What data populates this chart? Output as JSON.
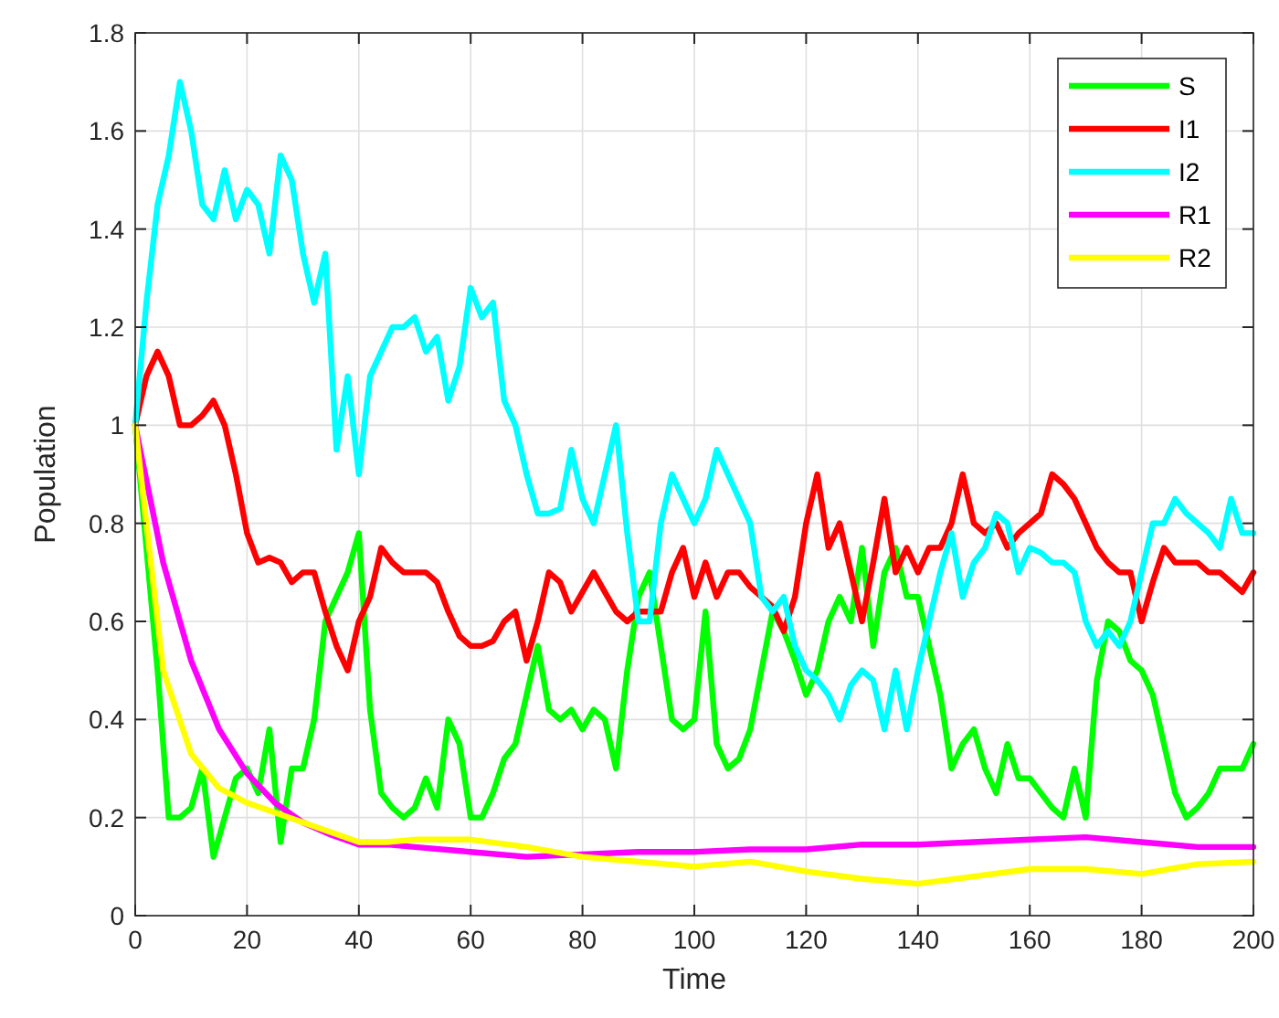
{
  "chart_data": {
    "type": "line",
    "xlabel": "Time",
    "ylabel": "Population",
    "x": [
      0,
      2,
      4,
      6,
      8,
      10,
      12,
      14,
      16,
      18,
      20,
      22,
      24,
      26,
      28,
      30,
      32,
      34,
      36,
      38,
      40,
      42,
      44,
      46,
      48,
      50,
      52,
      54,
      56,
      58,
      60,
      62,
      64,
      66,
      68,
      70,
      72,
      74,
      76,
      78,
      80,
      82,
      84,
      86,
      88,
      90,
      92,
      94,
      96,
      98,
      100,
      102,
      104,
      106,
      108,
      110,
      112,
      114,
      116,
      118,
      120,
      122,
      124,
      126,
      128,
      130,
      132,
      134,
      136,
      138,
      140,
      142,
      144,
      146,
      148,
      150,
      152,
      154,
      156,
      158,
      160,
      162,
      164,
      166,
      168,
      170,
      172,
      174,
      176,
      178,
      180,
      182,
      184,
      186,
      188,
      190,
      192,
      194,
      196,
      198,
      200
    ],
    "series": [
      {
        "name": "S",
        "color": "#00ff00",
        "values": [
          1.0,
          0.75,
          0.5,
          0.2,
          0.2,
          0.22,
          0.3,
          0.12,
          0.2,
          0.28,
          0.3,
          0.25,
          0.38,
          0.15,
          0.3,
          0.3,
          0.4,
          0.6,
          0.65,
          0.7,
          0.78,
          0.42,
          0.25,
          0.22,
          0.2,
          0.22,
          0.28,
          0.22,
          0.4,
          0.35,
          0.2,
          0.2,
          0.25,
          0.32,
          0.35,
          0.45,
          0.55,
          0.42,
          0.4,
          0.42,
          0.38,
          0.42,
          0.4,
          0.3,
          0.5,
          0.65,
          0.7,
          0.55,
          0.4,
          0.38,
          0.4,
          0.62,
          0.35,
          0.3,
          0.32,
          0.38,
          0.5,
          0.62,
          0.58,
          0.52,
          0.45,
          0.5,
          0.6,
          0.65,
          0.6,
          0.75,
          0.55,
          0.7,
          0.75,
          0.65,
          0.65,
          0.55,
          0.45,
          0.3,
          0.35,
          0.38,
          0.3,
          0.25,
          0.35,
          0.28,
          0.28,
          0.25,
          0.22,
          0.2,
          0.3,
          0.2,
          0.48,
          0.6,
          0.58,
          0.52,
          0.5,
          0.45,
          0.35,
          0.25,
          0.2,
          0.22,
          0.25,
          0.3,
          0.3,
          0.3,
          0.35
        ]
      },
      {
        "name": "I1",
        "color": "#ff0000",
        "values": [
          1.0,
          1.1,
          1.15,
          1.1,
          1.0,
          1.0,
          1.02,
          1.05,
          1.0,
          0.9,
          0.78,
          0.72,
          0.73,
          0.72,
          0.68,
          0.7,
          0.7,
          0.62,
          0.55,
          0.5,
          0.6,
          0.65,
          0.75,
          0.72,
          0.7,
          0.7,
          0.7,
          0.68,
          0.62,
          0.57,
          0.55,
          0.55,
          0.56,
          0.6,
          0.62,
          0.52,
          0.6,
          0.7,
          0.68,
          0.62,
          0.66,
          0.7,
          0.66,
          0.62,
          0.6,
          0.62,
          0.62,
          0.62,
          0.7,
          0.75,
          0.65,
          0.72,
          0.65,
          0.7,
          0.7,
          0.67,
          0.65,
          0.63,
          0.58,
          0.65,
          0.8,
          0.9,
          0.75,
          0.8,
          0.7,
          0.6,
          0.72,
          0.85,
          0.7,
          0.75,
          0.7,
          0.75,
          0.75,
          0.8,
          0.9,
          0.8,
          0.78,
          0.8,
          0.75,
          0.78,
          0.8,
          0.82,
          0.9,
          0.88,
          0.85,
          0.8,
          0.75,
          0.72,
          0.7,
          0.7,
          0.6,
          0.68,
          0.75,
          0.72,
          0.72,
          0.72,
          0.7,
          0.7,
          0.68,
          0.66,
          0.7
        ]
      },
      {
        "name": "I2",
        "color": "#00ffff",
        "values": [
          1.0,
          1.25,
          1.45,
          1.55,
          1.7,
          1.6,
          1.45,
          1.42,
          1.52,
          1.42,
          1.48,
          1.45,
          1.35,
          1.55,
          1.5,
          1.35,
          1.25,
          1.35,
          0.95,
          1.1,
          0.9,
          1.1,
          1.15,
          1.2,
          1.2,
          1.22,
          1.15,
          1.18,
          1.05,
          1.12,
          1.28,
          1.22,
          1.25,
          1.05,
          1.0,
          0.9,
          0.82,
          0.82,
          0.83,
          0.95,
          0.85,
          0.8,
          0.9,
          1.0,
          0.78,
          0.6,
          0.6,
          0.8,
          0.9,
          0.85,
          0.8,
          0.85,
          0.95,
          0.9,
          0.85,
          0.8,
          0.65,
          0.62,
          0.65,
          0.55,
          0.5,
          0.48,
          0.45,
          0.4,
          0.47,
          0.5,
          0.48,
          0.38,
          0.5,
          0.38,
          0.5,
          0.6,
          0.7,
          0.78,
          0.65,
          0.72,
          0.75,
          0.82,
          0.8,
          0.7,
          0.75,
          0.74,
          0.72,
          0.72,
          0.7,
          0.6,
          0.55,
          0.58,
          0.55,
          0.6,
          0.7,
          0.8,
          0.8,
          0.85,
          0.82,
          0.8,
          0.78,
          0.75,
          0.85,
          0.78,
          0.78
        ]
      },
      {
        "name": "R1",
        "color": "#ff00ff",
        "x": [
          0,
          5,
          10,
          15,
          20,
          25,
          30,
          35,
          40,
          45,
          50,
          60,
          70,
          80,
          90,
          100,
          110,
          120,
          130,
          140,
          150,
          160,
          170,
          180,
          190,
          200
        ],
        "values": [
          1.0,
          0.72,
          0.52,
          0.38,
          0.29,
          0.23,
          0.19,
          0.165,
          0.145,
          0.145,
          0.14,
          0.13,
          0.12,
          0.125,
          0.13,
          0.13,
          0.135,
          0.135,
          0.145,
          0.145,
          0.15,
          0.155,
          0.16,
          0.15,
          0.14,
          0.14
        ]
      },
      {
        "name": "R2",
        "color": "#ffff00",
        "x": [
          0,
          5,
          10,
          15,
          20,
          25,
          30,
          35,
          40,
          45,
          50,
          60,
          70,
          80,
          90,
          100,
          110,
          120,
          130,
          140,
          150,
          160,
          170,
          180,
          190,
          200
        ],
        "values": [
          1.0,
          0.5,
          0.33,
          0.26,
          0.23,
          0.21,
          0.19,
          0.17,
          0.15,
          0.15,
          0.155,
          0.155,
          0.14,
          0.12,
          0.11,
          0.1,
          0.11,
          0.09,
          0.075,
          0.065,
          0.08,
          0.095,
          0.095,
          0.085,
          0.105,
          0.11
        ]
      }
    ],
    "xlim": [
      0,
      200
    ],
    "xticks": [
      0,
      20,
      40,
      60,
      80,
      100,
      120,
      140,
      160,
      180,
      200
    ],
    "ylim": [
      0,
      1.8
    ],
    "yticks": [
      0,
      0.2,
      0.4,
      0.6,
      0.8,
      1,
      1.2,
      1.4,
      1.6,
      1.8
    ],
    "grid": true,
    "legend": "top right",
    "marker": "none",
    "line_style": "solid"
  }
}
